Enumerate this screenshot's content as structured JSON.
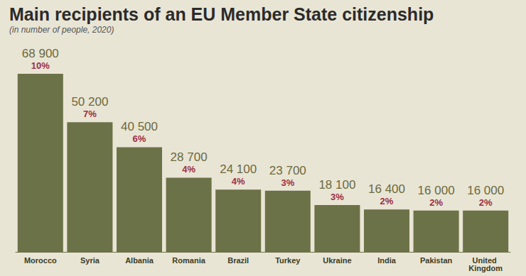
{
  "chart_data": {
    "type": "bar",
    "title": "Main recipients of an EU Member State citizenship",
    "subtitle": "(in number of people, 2020)",
    "categories": [
      "Morocco",
      "Syria",
      "Albania",
      "Romania",
      "Brazil",
      "Turkey",
      "Ukraine",
      "India",
      "Pakistan",
      "United Kingdom"
    ],
    "values": [
      68900,
      50200,
      40500,
      28700,
      24100,
      23700,
      18100,
      16400,
      16000,
      16000
    ],
    "value_labels": [
      "68 900",
      "50 200",
      "40 500",
      "28 700",
      "24 100",
      "23 700",
      "18 100",
      "16 400",
      "16 000",
      "16 000"
    ],
    "percent_labels": [
      "10%",
      "7%",
      "6%",
      "4%",
      "4%",
      "3%",
      "3%",
      "2%",
      "2%",
      "2%"
    ],
    "color": "#6c7247",
    "ylim": [
      0,
      70000
    ],
    "data_labels": true,
    "tick_labels": "x",
    "grid": false
  }
}
